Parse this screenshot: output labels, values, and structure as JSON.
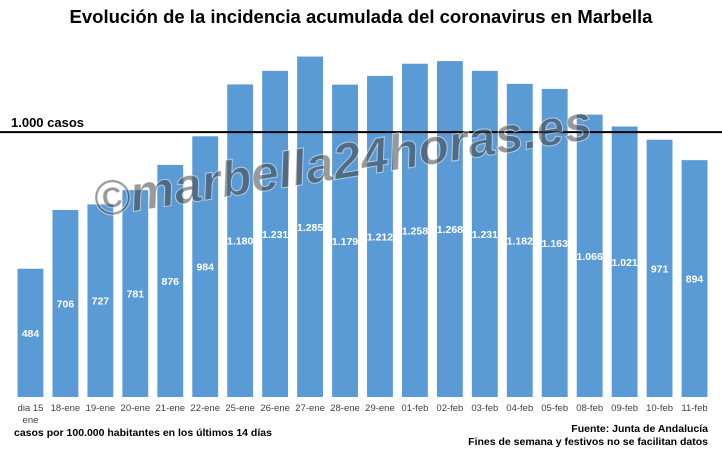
{
  "chart_data": {
    "type": "bar",
    "title": "Evolución de la incidencia acumulada del coronavirus en Marbella",
    "categories": [
      "dia 15 ene",
      "18-ene",
      "19-ene",
      "20-ene",
      "21-ene",
      "22-ene",
      "25-ene",
      "26-ene",
      "27-ene",
      "28-ene",
      "29-ene",
      "01-feb",
      "02-feb",
      "03-feb",
      "04-feb",
      "05-feb",
      "08-feb",
      "09-feb",
      "10-feb",
      "11-feb"
    ],
    "values": [
      484,
      706,
      727,
      781,
      876,
      984,
      1180,
      1231,
      1285,
      1179,
      1212,
      1258,
      1268,
      1231,
      1182,
      1163,
      1066,
      1021,
      971,
      894
    ],
    "data_labels": [
      "484",
      "706",
      "727",
      "781",
      "876",
      "984",
      "1.180",
      "1.231",
      "1.285",
      "1.179",
      "1.212",
      "1.258",
      "1.268",
      "1.231",
      "1.182",
      "1.163",
      "1.066",
      "1.021",
      "971",
      "894"
    ],
    "ylim": [
      0,
      1340
    ],
    "grid": false,
    "legend": "none",
    "bar_color": "#5b9bd5",
    "reference_line": {
      "value": 1000,
      "label": "1.000 casos",
      "color": "#000000"
    },
    "xlabel": "",
    "ylabel": "",
    "footnote_left": "casos por 100.000 habitantes en los últimos 14 días",
    "source": "Fuente: Junta de Andalucía",
    "note": "Fines de semana y festivos no se facilitan datos",
    "watermark": "©marbella24horas.es"
  }
}
